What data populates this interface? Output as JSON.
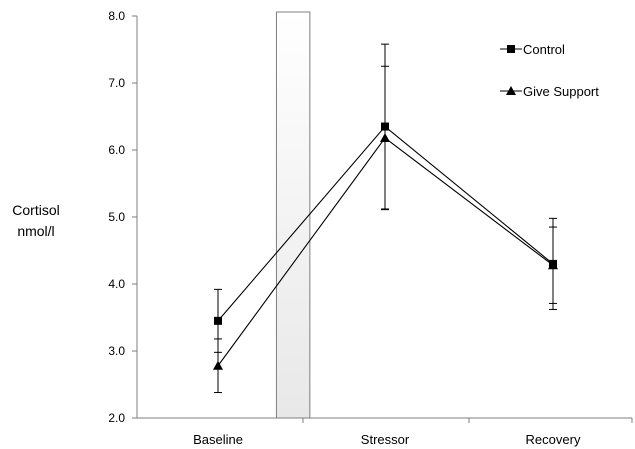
{
  "chart_data": {
    "type": "line",
    "categories": [
      "Baseline",
      "Stressor",
      "Recovery"
    ],
    "series": [
      {
        "name": "Control",
        "marker": "square",
        "values": [
          3.45,
          6.35,
          4.3
        ],
        "error": [
          0.47,
          1.23,
          0.68
        ]
      },
      {
        "name": "Give Support",
        "marker": "triangle",
        "values": [
          2.78,
          6.18,
          4.28
        ],
        "error": [
          0.4,
          1.07,
          0.57
        ]
      }
    ],
    "ylabel_lines": [
      "Cortisol",
      "nmol/l"
    ],
    "ylim": [
      2.0,
      8.0
    ],
    "yticks": [
      "2.0",
      "3.0",
      "4.0",
      "5.0",
      "6.0",
      "7.0",
      "8.0"
    ],
    "shaded_region": {
      "from": 0.35,
      "to": 0.55,
      "units": "category-interval-fraction between Baseline and Stressor"
    },
    "grid": false,
    "legend_position": "top-right",
    "colors": {
      "line": "#000000",
      "shade": "#e8e8e8"
    }
  }
}
